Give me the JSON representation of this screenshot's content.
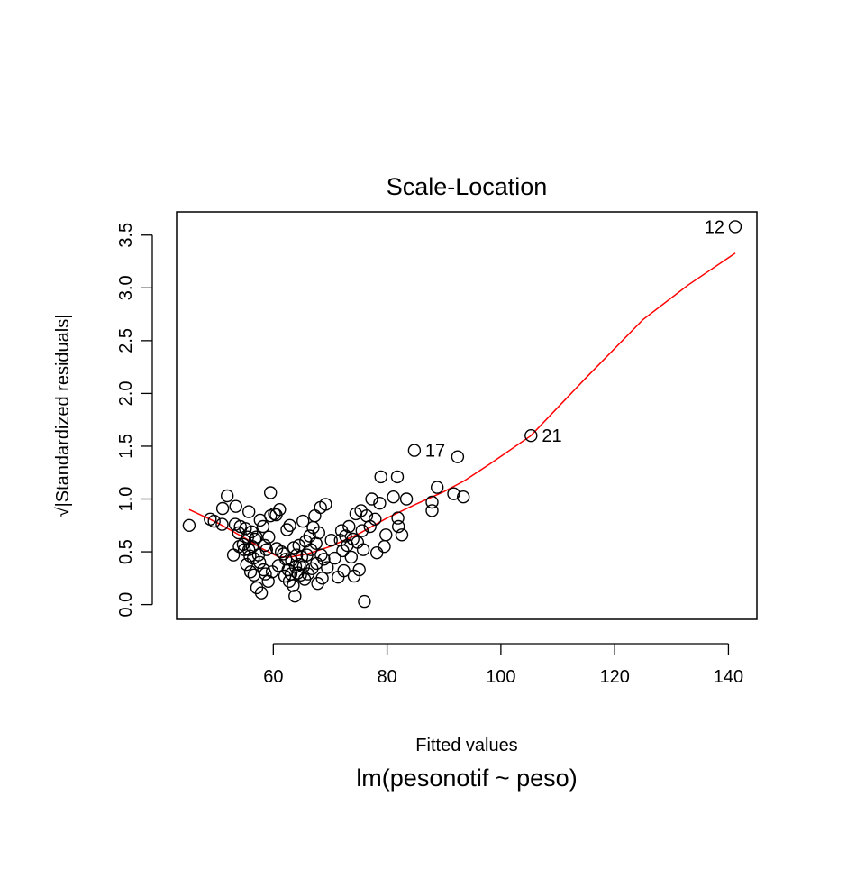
{
  "chart_data": {
    "type": "scatter",
    "title": "Scale-Location",
    "xlabel": "Fitted values",
    "ylabel": "√|Standardized residuals|",
    "sub_caption": "lm(pesonotif ~ peso)",
    "xlim": [
      43,
      145
    ],
    "ylim": [
      -0.14,
      3.72
    ],
    "x_ticks": [
      60,
      80,
      100,
      120,
      140
    ],
    "y_ticks": [
      0.0,
      0.5,
      1.0,
      1.5,
      2.0,
      2.5,
      3.0,
      3.5
    ],
    "x_tick_labels": [
      "60",
      "80",
      "100",
      "120",
      "140"
    ],
    "y_tick_labels": [
      "0.0",
      "0.5",
      "1.0",
      "1.5",
      "2.0",
      "2.5",
      "3.0",
      "3.5"
    ],
    "grid": false,
    "legend": "none",
    "colors": {
      "points": "#000000",
      "smoother": "#ff0000"
    },
    "points": [
      [
        45.2,
        0.75
      ],
      [
        48.9,
        0.81
      ],
      [
        49.6,
        0.79
      ],
      [
        51.0,
        0.76
      ],
      [
        51.1,
        0.91
      ],
      [
        51.9,
        1.03
      ],
      [
        53.0,
        0.47
      ],
      [
        53.3,
        0.76
      ],
      [
        53.4,
        0.93
      ],
      [
        53.9,
        0.68
      ],
      [
        54.0,
        0.55
      ],
      [
        54.2,
        0.74
      ],
      [
        54.7,
        0.57
      ],
      [
        54.9,
        0.52
      ],
      [
        55.1,
        0.72
      ],
      [
        55.3,
        0.38
      ],
      [
        55.5,
        0.64
      ],
      [
        55.7,
        0.88
      ],
      [
        55.7,
        0.52
      ],
      [
        55.9,
        0.46
      ],
      [
        56.0,
        0.31
      ],
      [
        56.2,
        0.69
      ],
      [
        56.3,
        0.55
      ],
      [
        56.5,
        0.44
      ],
      [
        56.6,
        0.28
      ],
      [
        56.8,
        0.62
      ],
      [
        57.0,
        0.64
      ],
      [
        57.1,
        0.16
      ],
      [
        57.4,
        0.47
      ],
      [
        57.6,
        0.4
      ],
      [
        57.7,
        0.8
      ],
      [
        57.9,
        0.11
      ],
      [
        58.2,
        0.74
      ],
      [
        58.3,
        0.33
      ],
      [
        58.5,
        0.56
      ],
      [
        58.6,
        0.29
      ],
      [
        58.8,
        0.52
      ],
      [
        59.1,
        0.22
      ],
      [
        59.2,
        0.64
      ],
      [
        59.5,
        1.06
      ],
      [
        59.5,
        0.84
      ],
      [
        59.8,
        0.31
      ],
      [
        60.2,
        0.86
      ],
      [
        60.5,
        0.85
      ],
      [
        60.6,
        0.53
      ],
      [
        60.9,
        0.37
      ],
      [
        61.1,
        0.9
      ],
      [
        61.4,
        0.5
      ],
      [
        61.8,
        0.48
      ],
      [
        62.0,
        0.27
      ],
      [
        62.2,
        0.43
      ],
      [
        62.4,
        0.71
      ],
      [
        62.6,
        0.33
      ],
      [
        62.8,
        0.22
      ],
      [
        62.9,
        0.75
      ],
      [
        63.1,
        0.29
      ],
      [
        63.2,
        0.42
      ],
      [
        63.5,
        0.18
      ],
      [
        63.6,
        0.54
      ],
      [
        63.8,
        0.08
      ],
      [
        63.9,
        0.36
      ],
      [
        64.1,
        0.47
      ],
      [
        64.3,
        0.3
      ],
      [
        64.5,
        0.56
      ],
      [
        64.6,
        0.38
      ],
      [
        64.8,
        0.28
      ],
      [
        65.0,
        0.45
      ],
      [
        65.2,
        0.79
      ],
      [
        65.3,
        0.36
      ],
      [
        65.5,
        0.24
      ],
      [
        65.7,
        0.6
      ],
      [
        65.9,
        0.47
      ],
      [
        66.1,
        0.29
      ],
      [
        66.4,
        0.65
      ],
      [
        66.6,
        0.52
      ],
      [
        66.8,
        0.34
      ],
      [
        67.0,
        0.73
      ],
      [
        67.3,
        0.84
      ],
      [
        67.5,
        0.58
      ],
      [
        67.6,
        0.39
      ],
      [
        67.8,
        0.2
      ],
      [
        68.0,
        0.68
      ],
      [
        68.3,
        0.92
      ],
      [
        68.4,
        0.47
      ],
      [
        68.6,
        0.25
      ],
      [
        68.9,
        0.43
      ],
      [
        69.2,
        0.95
      ],
      [
        69.5,
        0.35
      ],
      [
        70.2,
        0.61
      ],
      [
        70.8,
        0.44
      ],
      [
        71.4,
        0.26
      ],
      [
        71.8,
        0.61
      ],
      [
        72.0,
        0.7
      ],
      [
        72.2,
        0.51
      ],
      [
        72.4,
        0.32
      ],
      [
        72.7,
        0.65
      ],
      [
        73.0,
        0.56
      ],
      [
        73.3,
        0.74
      ],
      [
        73.7,
        0.45
      ],
      [
        74.0,
        0.62
      ],
      [
        74.2,
        0.27
      ],
      [
        74.5,
        0.86
      ],
      [
        74.8,
        0.59
      ],
      [
        75.1,
        0.33
      ],
      [
        75.4,
        0.89
      ],
      [
        75.6,
        0.7
      ],
      [
        75.8,
        0.52
      ],
      [
        76.0,
        0.03
      ],
      [
        76.4,
        0.84
      ],
      [
        77.0,
        0.74
      ],
      [
        77.3,
        1.0
      ],
      [
        77.9,
        0.81
      ],
      [
        78.2,
        0.49
      ],
      [
        78.7,
        0.96
      ],
      [
        78.9,
        1.21
      ],
      [
        79.5,
        0.55
      ],
      [
        79.8,
        0.66
      ],
      [
        81.1,
        1.02
      ],
      [
        81.8,
        1.21
      ],
      [
        81.9,
        0.82
      ],
      [
        82.0,
        0.74
      ],
      [
        82.6,
        0.66
      ],
      [
        83.4,
        1.0
      ],
      [
        84.8,
        1.46
      ],
      [
        87.9,
        0.89
      ],
      [
        87.9,
        0.97
      ],
      [
        88.8,
        1.11
      ],
      [
        91.7,
        1.05
      ],
      [
        92.4,
        1.4
      ],
      [
        93.4,
        1.02
      ],
      [
        105.3,
        1.6
      ],
      [
        141.2,
        3.58
      ]
    ],
    "labeled_points": [
      {
        "label": "12",
        "x": 141.2,
        "y": 3.58,
        "side": "left"
      },
      {
        "label": "17",
        "x": 84.8,
        "y": 1.46,
        "side": "right"
      },
      {
        "label": "21",
        "x": 105.3,
        "y": 1.6,
        "side": "right"
      }
    ],
    "smoother": [
      [
        45.2,
        0.9
      ],
      [
        50.0,
        0.78
      ],
      [
        55.0,
        0.63
      ],
      [
        58.0,
        0.53
      ],
      [
        61.0,
        0.45
      ],
      [
        63.0,
        0.45
      ],
      [
        66.0,
        0.48
      ],
      [
        70.0,
        0.55
      ],
      [
        75.0,
        0.67
      ],
      [
        80.0,
        0.82
      ],
      [
        85.0,
        0.95
      ],
      [
        90.0,
        1.07
      ],
      [
        93.5,
        1.17
      ],
      [
        98.0,
        1.33
      ],
      [
        105.3,
        1.6
      ],
      [
        115.0,
        2.15
      ],
      [
        125.0,
        2.7
      ],
      [
        133.0,
        3.03
      ],
      [
        141.2,
        3.33
      ]
    ]
  }
}
